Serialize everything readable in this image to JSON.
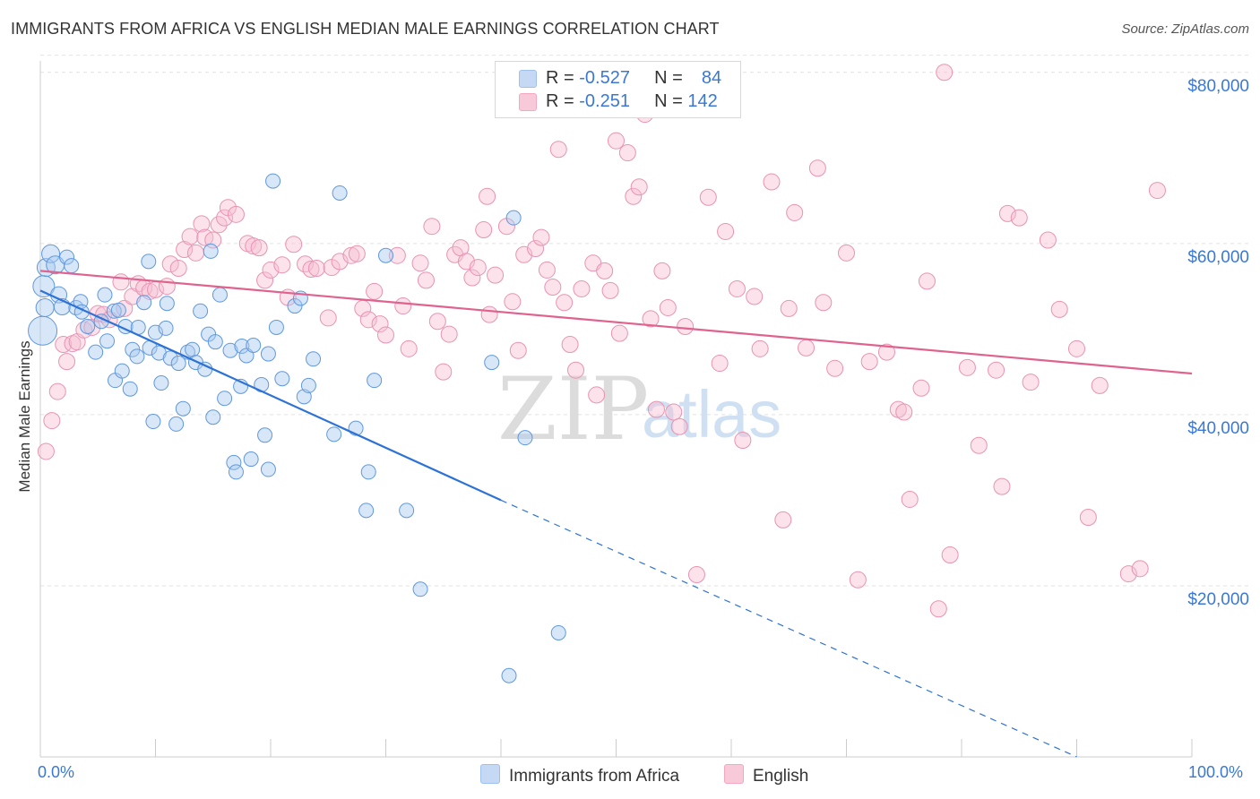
{
  "title": "IMMIGRANTS FROM AFRICA VS ENGLISH MEDIAN MALE EARNINGS CORRELATION CHART",
  "source": "Source: ZipAtlas.com",
  "watermark": {
    "zip": "ZIP",
    "atlas": "atlas"
  },
  "stats": [
    {
      "r_label": "R =",
      "r_value": "-0.527",
      "n_label": "N =",
      "n_value": "84",
      "color": "#9ec0ee"
    },
    {
      "r_label": "R =",
      "r_value": "-0.251",
      "n_label": "N =",
      "n_value": "142",
      "color": "#f4a7c0"
    }
  ],
  "legend": [
    {
      "label": "Immigrants from Africa",
      "color": "#9ec0ee"
    },
    {
      "label": "English",
      "color": "#f4a7c0"
    }
  ],
  "chart_data": {
    "type": "scatter",
    "title": "IMMIGRANTS FROM AFRICA VS ENGLISH MEDIAN MALE EARNINGS CORRELATION CHART",
    "xlabel": "",
    "ylabel": "Median Male Earnings",
    "xlim": [
      0,
      100
    ],
    "ylim": [
      0,
      82000
    ],
    "x_tick_labels": [
      "0.0%",
      "100.0%"
    ],
    "y_ticks": [
      20000,
      40000,
      60000,
      80000
    ],
    "y_tick_labels": [
      "$20,000",
      "$40,000",
      "$60,000",
      "$80,000"
    ],
    "grid": true,
    "legend_position": "bottom",
    "series": [
      {
        "name": "Immigrants from Africa",
        "color": "#4f8fdf",
        "trend": {
          "x0": 0,
          "y0": 54500,
          "x1": 40,
          "y1": 30000,
          "dashed_to_x": 90,
          "dashed_to_y": 0
        },
        "points": [
          [
            0.2,
            49800,
            16
          ],
          [
            0.3,
            55000,
            12
          ],
          [
            0.4,
            52500,
            10
          ],
          [
            0.5,
            57200,
            10
          ],
          [
            0.9,
            58800,
            10
          ],
          [
            1.3,
            57500,
            10
          ],
          [
            1.6,
            54000,
            9
          ],
          [
            1.9,
            52600,
            9
          ],
          [
            2.3,
            58400,
            8
          ],
          [
            2.7,
            57400,
            8
          ],
          [
            3.1,
            52500,
            8
          ],
          [
            3.5,
            53200,
            8
          ],
          [
            3.6,
            52000,
            8
          ],
          [
            4.1,
            50300,
            8
          ],
          [
            4.8,
            47300,
            8
          ],
          [
            5.3,
            50900,
            8
          ],
          [
            5.6,
            54000,
            8
          ],
          [
            5.8,
            48600,
            8
          ],
          [
            6.4,
            52100,
            8
          ],
          [
            6.5,
            44000,
            8
          ],
          [
            6.8,
            52200,
            8
          ],
          [
            7.1,
            45100,
            8
          ],
          [
            7.4,
            50300,
            8
          ],
          [
            7.8,
            43000,
            8
          ],
          [
            8.0,
            47600,
            8
          ],
          [
            8.4,
            46800,
            8
          ],
          [
            8.5,
            50200,
            8
          ],
          [
            9.0,
            53100,
            8
          ],
          [
            9.4,
            57900,
            8
          ],
          [
            9.5,
            47800,
            8
          ],
          [
            9.8,
            39200,
            8
          ],
          [
            10.0,
            49600,
            8
          ],
          [
            10.3,
            47200,
            8
          ],
          [
            10.5,
            43700,
            8
          ],
          [
            10.9,
            50100,
            8
          ],
          [
            11.0,
            53000,
            8
          ],
          [
            11.3,
            46600,
            8
          ],
          [
            11.8,
            38900,
            8
          ],
          [
            12.0,
            46000,
            8
          ],
          [
            12.4,
            40700,
            8
          ],
          [
            12.8,
            47300,
            8
          ],
          [
            13.2,
            47600,
            8
          ],
          [
            13.5,
            46100,
            8
          ],
          [
            13.9,
            52100,
            8
          ],
          [
            14.3,
            45300,
            8
          ],
          [
            14.6,
            49400,
            8
          ],
          [
            14.8,
            59100,
            8
          ],
          [
            15.0,
            39700,
            8
          ],
          [
            15.2,
            48500,
            8
          ],
          [
            15.6,
            54000,
            8
          ],
          [
            16.0,
            41900,
            8
          ],
          [
            16.5,
            47500,
            8
          ],
          [
            16.8,
            34400,
            8
          ],
          [
            17.0,
            33300,
            8
          ],
          [
            17.4,
            43300,
            8
          ],
          [
            17.5,
            48000,
            8
          ],
          [
            17.9,
            46900,
            8
          ],
          [
            18.3,
            34800,
            8
          ],
          [
            18.5,
            48100,
            8
          ],
          [
            19.2,
            43500,
            8
          ],
          [
            19.5,
            37600,
            8
          ],
          [
            19.8,
            33600,
            8
          ],
          [
            19.8,
            47100,
            8
          ],
          [
            20.2,
            67300,
            8
          ],
          [
            20.5,
            50200,
            8
          ],
          [
            21.0,
            44200,
            8
          ],
          [
            22.1,
            52700,
            8
          ],
          [
            22.6,
            53600,
            8
          ],
          [
            22.9,
            42100,
            8
          ],
          [
            23.3,
            43400,
            8
          ],
          [
            23.7,
            46500,
            8
          ],
          [
            25.5,
            37700,
            8
          ],
          [
            26.0,
            65900,
            8
          ],
          [
            27.4,
            38400,
            8
          ],
          [
            28.5,
            33300,
            8
          ],
          [
            29.0,
            44000,
            8
          ],
          [
            28.3,
            28800,
            8
          ],
          [
            30.0,
            58600,
            8
          ],
          [
            31.8,
            28800,
            8
          ],
          [
            33.0,
            19600,
            8
          ],
          [
            39.2,
            46100,
            8
          ],
          [
            41.1,
            63000,
            8
          ],
          [
            42.1,
            37300,
            8
          ],
          [
            40.7,
            9500,
            8
          ],
          [
            45.0,
            14500,
            8
          ]
        ]
      },
      {
        "name": "English",
        "color": "#e76b97",
        "trend": {
          "x0": 0,
          "y0": 56800,
          "x1": 100,
          "y1": 44800
        },
        "points": [
          [
            0.5,
            35700,
            9
          ],
          [
            1.0,
            39300,
            9
          ],
          [
            1.5,
            42700,
            9
          ],
          [
            2.0,
            48200,
            9
          ],
          [
            2.3,
            46200,
            9
          ],
          [
            2.8,
            48300,
            9
          ],
          [
            3.2,
            48500,
            9
          ],
          [
            3.8,
            49900,
            9
          ],
          [
            4.5,
            50200,
            9
          ],
          [
            5.0,
            51800,
            9
          ],
          [
            5.5,
            51700,
            9
          ],
          [
            6.0,
            51100,
            9
          ],
          [
            7.0,
            55500,
            9
          ],
          [
            7.3,
            52400,
            9
          ],
          [
            8.0,
            53800,
            9
          ],
          [
            8.5,
            55300,
            9
          ],
          [
            9.0,
            54800,
            9
          ],
          [
            9.5,
            54400,
            9
          ],
          [
            10.0,
            54600,
            9
          ],
          [
            11.0,
            55000,
            9
          ],
          [
            11.3,
            57600,
            9
          ],
          [
            12.0,
            57100,
            9
          ],
          [
            12.5,
            59300,
            9
          ],
          [
            13.0,
            60800,
            9
          ],
          [
            13.5,
            58900,
            9
          ],
          [
            14.0,
            62300,
            9
          ],
          [
            14.3,
            60700,
            9
          ],
          [
            15.0,
            60400,
            9
          ],
          [
            15.5,
            62200,
            9
          ],
          [
            16.0,
            63000,
            9
          ],
          [
            16.3,
            64200,
            9
          ],
          [
            17.0,
            63400,
            9
          ],
          [
            18.0,
            60000,
            9
          ],
          [
            18.5,
            59700,
            9
          ],
          [
            19.0,
            59500,
            9
          ],
          [
            19.5,
            55700,
            9
          ],
          [
            20.0,
            56900,
            9
          ],
          [
            21.0,
            57500,
            9
          ],
          [
            21.5,
            53700,
            9
          ],
          [
            22.0,
            59900,
            9
          ],
          [
            23.0,
            57600,
            9
          ],
          [
            23.5,
            57000,
            9
          ],
          [
            24.0,
            57100,
            9
          ],
          [
            25.0,
            51300,
            9
          ],
          [
            25.3,
            57200,
            9
          ],
          [
            26.0,
            57900,
            9
          ],
          [
            27.0,
            58600,
            9
          ],
          [
            27.5,
            58800,
            9
          ],
          [
            28.0,
            52400,
            9
          ],
          [
            28.5,
            51100,
            9
          ],
          [
            29.0,
            54400,
            9
          ],
          [
            29.5,
            50600,
            9
          ],
          [
            30.0,
            49300,
            9
          ],
          [
            31.0,
            58600,
            9
          ],
          [
            31.5,
            52700,
            9
          ],
          [
            32.0,
            47700,
            9
          ],
          [
            33.0,
            57700,
            9
          ],
          [
            33.5,
            55700,
            9
          ],
          [
            34.0,
            62000,
            9
          ],
          [
            34.5,
            50900,
            9
          ],
          [
            35.0,
            45000,
            9
          ],
          [
            35.5,
            49400,
            9
          ],
          [
            36.0,
            58700,
            9
          ],
          [
            36.5,
            59500,
            9
          ],
          [
            37.0,
            57900,
            9
          ],
          [
            37.5,
            56000,
            9
          ],
          [
            38.0,
            57200,
            9
          ],
          [
            38.5,
            61600,
            9
          ],
          [
            38.8,
            65500,
            9
          ],
          [
            39.0,
            51700,
            9
          ],
          [
            39.5,
            56300,
            9
          ],
          [
            40.5,
            62000,
            9
          ],
          [
            41.0,
            53200,
            9
          ],
          [
            41.5,
            47500,
            9
          ],
          [
            42.0,
            58700,
            9
          ],
          [
            43.0,
            59400,
            9
          ],
          [
            43.5,
            60700,
            9
          ],
          [
            44.0,
            56900,
            9
          ],
          [
            44.5,
            54900,
            9
          ],
          [
            45.0,
            71000,
            9
          ],
          [
            45.5,
            53100,
            9
          ],
          [
            46.0,
            48200,
            9
          ],
          [
            46.5,
            45200,
            9
          ],
          [
            47.0,
            54700,
            9
          ],
          [
            48.0,
            57700,
            9
          ],
          [
            48.3,
            42300,
            9
          ],
          [
            49.0,
            56800,
            9
          ],
          [
            49.5,
            54500,
            9
          ],
          [
            50.0,
            72000,
            9
          ],
          [
            50.3,
            49500,
            9
          ],
          [
            51.0,
            70600,
            9
          ],
          [
            51.5,
            65500,
            9
          ],
          [
            52.0,
            66600,
            9
          ],
          [
            52.5,
            75100,
            9
          ],
          [
            53.0,
            51200,
            9
          ],
          [
            53.5,
            40600,
            9
          ],
          [
            54.0,
            56800,
            9
          ],
          [
            54.5,
            52500,
            9
          ],
          [
            55.0,
            40300,
            9
          ],
          [
            55.5,
            38600,
            9
          ],
          [
            56.0,
            50300,
            9
          ],
          [
            57.0,
            21300,
            9
          ],
          [
            58.0,
            65400,
            9
          ],
          [
            59.0,
            46000,
            9
          ],
          [
            59.5,
            61400,
            9
          ],
          [
            60.5,
            54700,
            9
          ],
          [
            61.0,
            37000,
            9
          ],
          [
            62.0,
            53800,
            9
          ],
          [
            62.5,
            47700,
            9
          ],
          [
            63.5,
            67200,
            9
          ],
          [
            64.5,
            27700,
            9
          ],
          [
            65.0,
            52400,
            9
          ],
          [
            65.5,
            63600,
            9
          ],
          [
            66.5,
            47800,
            9
          ],
          [
            67.5,
            68800,
            9
          ],
          [
            68.0,
            53100,
            9
          ],
          [
            69.0,
            45400,
            9
          ],
          [
            70.0,
            58900,
            9
          ],
          [
            71.0,
            20700,
            9
          ],
          [
            72.0,
            46200,
            9
          ],
          [
            73.5,
            47300,
            9
          ],
          [
            74.5,
            40600,
            9
          ],
          [
            75.0,
            40300,
            9
          ],
          [
            75.5,
            30100,
            9
          ],
          [
            76.5,
            43100,
            9
          ],
          [
            77.0,
            55600,
            9
          ],
          [
            78.0,
            17300,
            9
          ],
          [
            78.5,
            80000,
            9
          ],
          [
            79.0,
            23600,
            9
          ],
          [
            80.5,
            45500,
            9
          ],
          [
            81.5,
            36400,
            9
          ],
          [
            83.0,
            45200,
            9
          ],
          [
            83.5,
            31600,
            9
          ],
          [
            84.0,
            63500,
            9
          ],
          [
            85.0,
            63000,
            9
          ],
          [
            86.0,
            43800,
            9
          ],
          [
            87.5,
            60400,
            9
          ],
          [
            88.5,
            52300,
            9
          ],
          [
            90.0,
            47700,
            9
          ],
          [
            91.0,
            28000,
            9
          ],
          [
            92.0,
            43400,
            9
          ],
          [
            94.5,
            21400,
            9
          ],
          [
            95.5,
            22000,
            9
          ],
          [
            97.0,
            66200,
            9
          ]
        ]
      }
    ]
  }
}
